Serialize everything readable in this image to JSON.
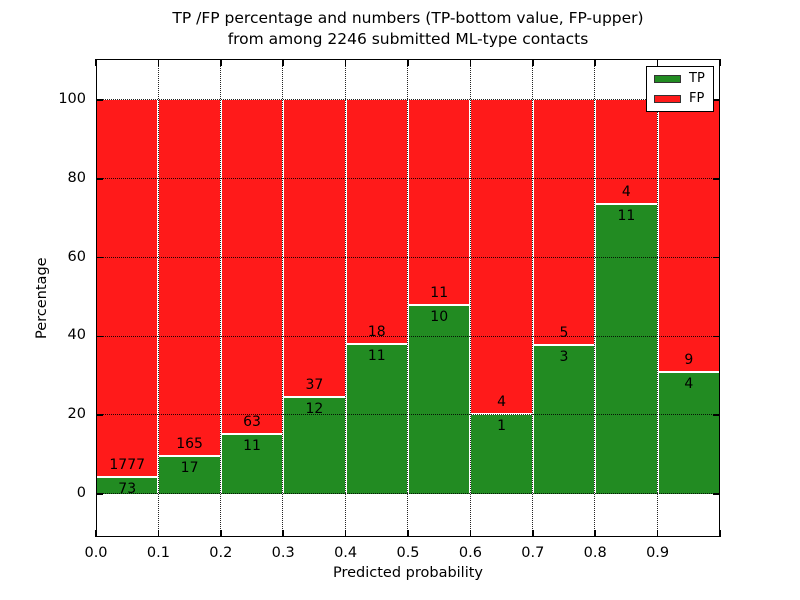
{
  "title": {
    "line1": "TP /FP percentage and numbers (TP-bottom value, FP-upper)",
    "line2": "from among 2246 submitted ML-type contacts"
  },
  "colors": {
    "tp_green": "#228B22",
    "fp_red": "#ff1a1a",
    "grid": "#000000",
    "background": "#ffffff",
    "text": "#000000"
  },
  "chart_data": {
    "type": "bar",
    "stacked": true,
    "normalized": "each bin scaled to 100%, bar heights = TP/(TP+FP)*100",
    "title": "TP /FP percentage and numbers (TP-bottom value, FP-upper) from among 2246 submitted ML-type contacts",
    "xlabel": "Predicted probability",
    "ylabel": "Percentage",
    "xlim": [
      0.0,
      1.0
    ],
    "ylim": [
      -11,
      110
    ],
    "grid": true,
    "grid_style": "dotted black",
    "x_tick_labels": [
      "0.0",
      "0.1",
      "0.2",
      "0.3",
      "0.4",
      "0.5",
      "0.6",
      "0.7",
      "0.8",
      "0.9"
    ],
    "y_tick_values": [
      0,
      20,
      40,
      60,
      80,
      100
    ],
    "bin_width": 0.1,
    "total_contacts": 2246,
    "label_convention": "TP count printed below segment boundary, FP count above",
    "series": [
      {
        "name": "TP",
        "color": "#228B22",
        "values": [
          73,
          17,
          11,
          12,
          11,
          10,
          1,
          3,
          11,
          4
        ]
      },
      {
        "name": "FP",
        "color": "#ff1a1a",
        "values": [
          1777,
          165,
          63,
          37,
          18,
          11,
          4,
          5,
          4,
          9
        ]
      }
    ],
    "bins": [
      {
        "x_start": 0.0,
        "tp": 73,
        "fp": 1777
      },
      {
        "x_start": 0.1,
        "tp": 17,
        "fp": 165
      },
      {
        "x_start": 0.2,
        "tp": 11,
        "fp": 63
      },
      {
        "x_start": 0.3,
        "tp": 12,
        "fp": 37
      },
      {
        "x_start": 0.4,
        "tp": 11,
        "fp": 18
      },
      {
        "x_start": 0.5,
        "tp": 10,
        "fp": 11
      },
      {
        "x_start": 0.6,
        "tp": 1,
        "fp": 4
      },
      {
        "x_start": 0.7,
        "tp": 3,
        "fp": 5
      },
      {
        "x_start": 0.8,
        "tp": 11,
        "fp": 4
      },
      {
        "x_start": 0.9,
        "tp": 4,
        "fp": 9
      }
    ],
    "legend": {
      "position": "upper right",
      "entries": [
        {
          "label": "TP",
          "color": "#228B22"
        },
        {
          "label": "FP",
          "color": "#ff1a1a"
        }
      ]
    }
  }
}
